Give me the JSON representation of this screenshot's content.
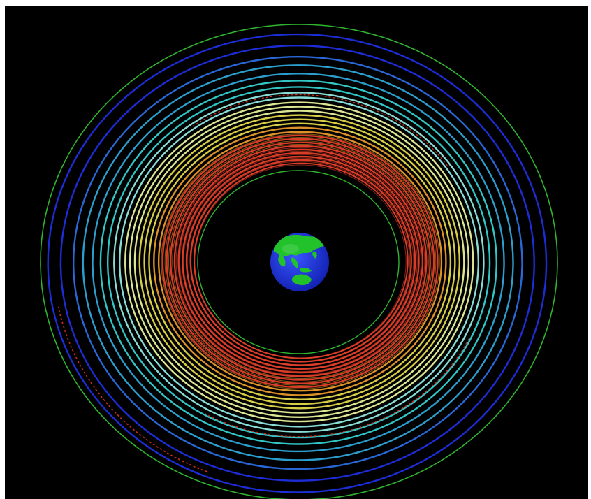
{
  "figure": {
    "background_color": "#000000",
    "frame_color": "#ffffff",
    "earth_icon": "earth-globe-icon",
    "earth_colors": {
      "ocean": "#1a2fd6",
      "land": "#22c22a",
      "highlight": "#ffffff"
    }
  },
  "orbit_colors": {
    "outer_boundary": "#2fb52f",
    "dark_blue": "#1f2fe0",
    "blue": "#2a6de0",
    "light_blue": "#2ea7d8",
    "cyan": "#35d0d0",
    "pale_cyan": "#8fe8e0",
    "light_yellow": "#e8f29a",
    "yellow": "#e3d84b",
    "orange": "#e89a2a",
    "red": "#e5402a",
    "dashed_red": "#d02a1a",
    "inner_boundary": "#2fb52f"
  }
}
